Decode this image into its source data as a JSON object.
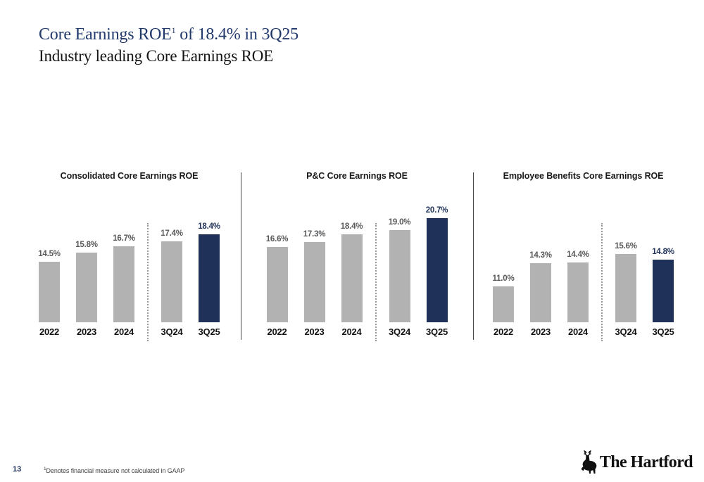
{
  "header": {
    "title": {
      "pre": "Core Earnings ROE",
      "sup": "1",
      "post": " of 18.4% in 3Q25"
    },
    "subtitle": "Industry leading Core Earnings ROE"
  },
  "colors": {
    "accent_navy": "#1F3158",
    "title_navy": "#21386B",
    "bar_gray": "#B2B2B2",
    "value_label_gray": "#58595B",
    "separator_gray": "#4A4A4A",
    "dotted_line_gray": "#9A9A9A"
  },
  "chart_data": [
    {
      "type": "bar",
      "title": "Consolidated Core Earnings ROE",
      "categories": [
        "2022",
        "2023",
        "2024",
        "3Q24",
        "3Q25"
      ],
      "values": [
        14.5,
        15.8,
        16.7,
        17.4,
        18.4
      ],
      "labels": [
        "14.5%",
        "15.8%",
        "16.7%",
        "17.4%",
        "18.4%"
      ],
      "highlight_index": 4,
      "divider_after_index": 2,
      "ylim": [
        5.9,
        20.9
      ],
      "grid": false,
      "legend": false,
      "xlabel": "",
      "ylabel": ""
    },
    {
      "type": "bar",
      "title": "P&C Core Earnings ROE",
      "categories": [
        "2022",
        "2023",
        "2024",
        "3Q24",
        "3Q25"
      ],
      "values": [
        16.6,
        17.3,
        18.4,
        19.0,
        20.7
      ],
      "labels": [
        "16.6%",
        "17.3%",
        "18.4%",
        "19.0%",
        "20.7%"
      ],
      "highlight_index": 4,
      "divider_after_index": 2,
      "ylim": [
        5.9,
        20.9
      ],
      "grid": false,
      "legend": false,
      "xlabel": "",
      "ylabel": ""
    },
    {
      "type": "bar",
      "title": "Employee Benefits Core Earnings ROE",
      "categories": [
        "2022",
        "2023",
        "2024",
        "3Q24",
        "3Q25"
      ],
      "values": [
        11.0,
        14.3,
        14.4,
        15.6,
        14.8
      ],
      "labels": [
        "11.0%",
        "14.3%",
        "14.4%",
        "15.6%",
        "14.8%"
      ],
      "highlight_index": 4,
      "divider_after_index": 2,
      "ylim": [
        5.9,
        20.9
      ],
      "grid": false,
      "legend": false,
      "xlabel": "",
      "ylabel": ""
    }
  ],
  "footer": {
    "page_number": "13",
    "footnote_sup": "1",
    "footnote_text": "Denotes financial measure not calculated in GAAP",
    "logo_text": "The Hartford"
  }
}
